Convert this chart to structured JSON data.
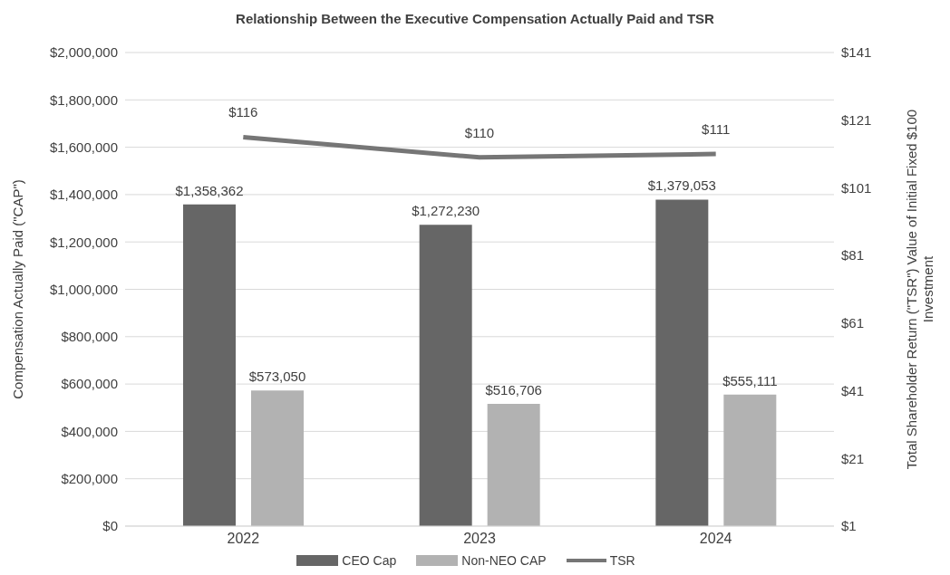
{
  "chart_data": {
    "type": "bar",
    "title": "Relationship Between the Executive Compensation Actually Paid and TSR",
    "ylabel": "Compensation Actually Paid (\"CAP\")",
    "y2label": "Total Shareholder Return (\"TSR\") Value of Initial Fixed $100 Investment",
    "categories": [
      "2022",
      "2023",
      "2024"
    ],
    "series": [
      {
        "name": "CEO Cap",
        "color": "#666666",
        "values": [
          1358362,
          1272230,
          1379053
        ],
        "value_labels": [
          "$1,358,362",
          "$1,272,230",
          "$1,379,053"
        ]
      },
      {
        "name": "Non-NEO CAP",
        "color": "#b2b2b2",
        "values": [
          573050,
          516706,
          555111
        ],
        "value_labels": [
          "$573,050",
          "$516,706",
          "$555,111"
        ]
      },
      {
        "name": "TSR",
        "type": "line",
        "axis": "y2",
        "color": "#767676",
        "values": [
          116,
          110,
          111
        ],
        "value_labels": [
          "$116",
          "$110",
          "$111"
        ]
      }
    ],
    "ylim": [
      0,
      2000000
    ],
    "yticks": [
      {
        "value": 0,
        "label": "$0"
      },
      {
        "value": 200000,
        "label": "$200,000"
      },
      {
        "value": 400000,
        "label": "$400,000"
      },
      {
        "value": 600000,
        "label": "$600,000"
      },
      {
        "value": 800000,
        "label": "$800,000"
      },
      {
        "value": 1000000,
        "label": "$1,000,000"
      },
      {
        "value": 1200000,
        "label": "$1,200,000"
      },
      {
        "value": 1400000,
        "label": "$1,400,000"
      },
      {
        "value": 1600000,
        "label": "$1,600,000"
      },
      {
        "value": 1800000,
        "label": "$1,800,000"
      },
      {
        "value": 2000000,
        "label": "$2,000,000"
      }
    ],
    "y2lim": [
      1,
      141
    ],
    "y2ticks": [
      {
        "value": 1,
        "label": "$1"
      },
      {
        "value": 21,
        "label": "$21"
      },
      {
        "value": 41,
        "label": "$41"
      },
      {
        "value": 61,
        "label": "$61"
      },
      {
        "value": 81,
        "label": "$81"
      },
      {
        "value": 101,
        "label": "$101"
      },
      {
        "value": 121,
        "label": "$121"
      },
      {
        "value": 141,
        "label": "$141"
      }
    ],
    "grid": "y",
    "legend": "bottom",
    "marker": "none",
    "line_style": "solid"
  }
}
